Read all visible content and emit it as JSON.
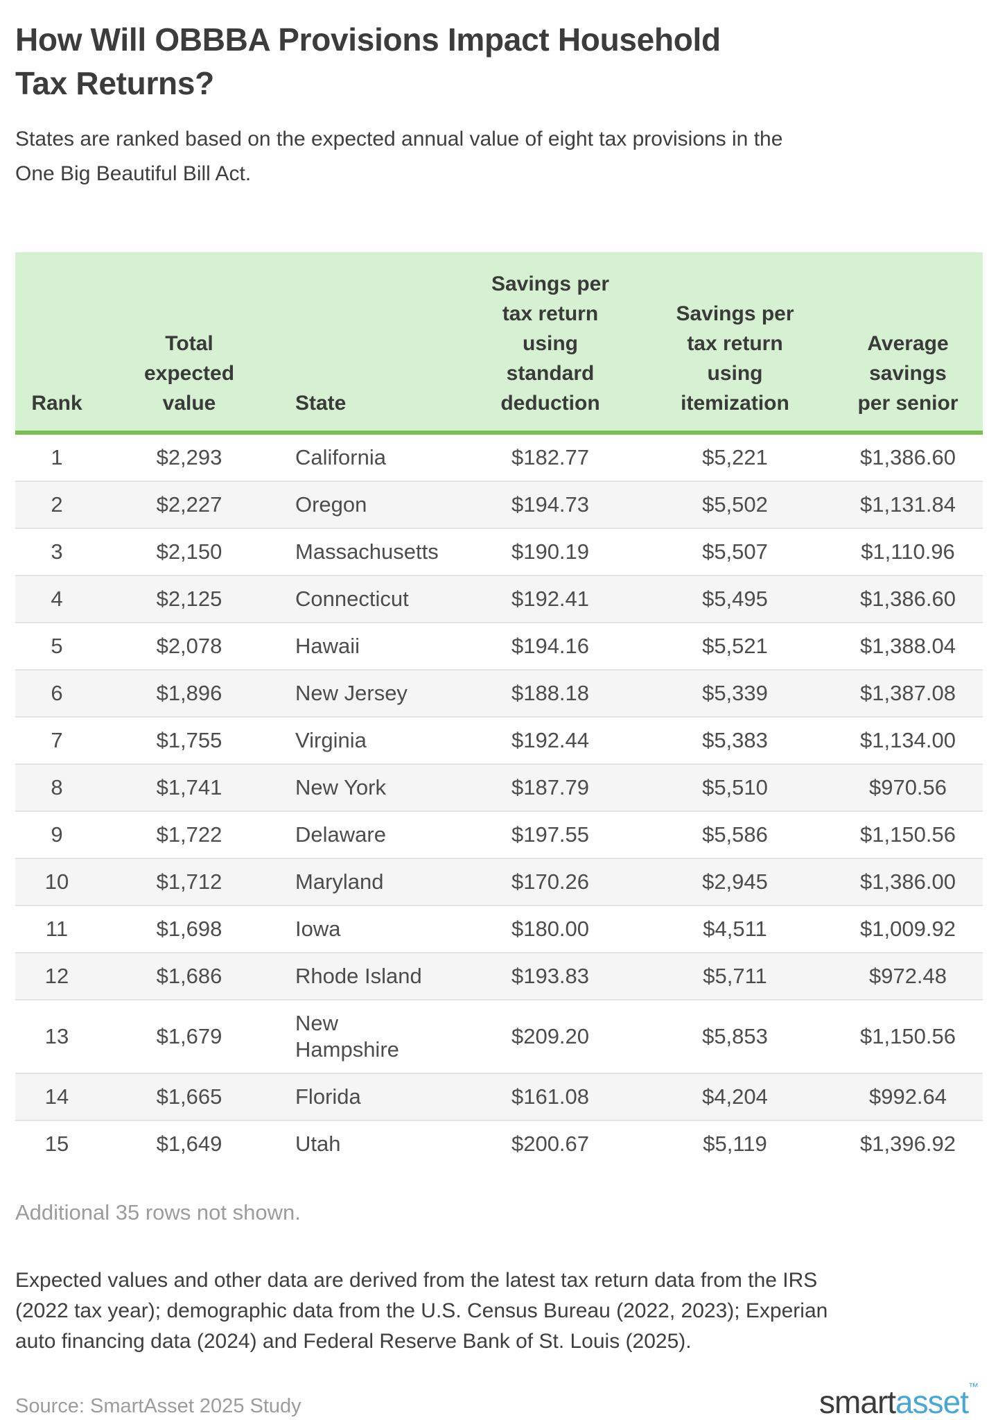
{
  "header": {
    "title": "How Will OBBBA Provisions Impact Household Tax Returns?",
    "subtitle": "States are ranked based on the expected annual value of eight tax provisions in the One Big Beautiful Bill Act."
  },
  "chart_data": {
    "type": "table",
    "title": "How Will OBBBA Provisions Impact Household Tax Returns?",
    "subtitle": "States are ranked based on the expected annual value of eight tax provisions in the One Big Beautiful Bill Act.",
    "columns": [
      {
        "label": "Rank",
        "display": "Rank"
      },
      {
        "label": "Total expected value",
        "display": "Total\nexpected\nvalue"
      },
      {
        "label": "State",
        "display": "State"
      },
      {
        "label": "Savings per tax return using standard deduction",
        "display": "Savings per\ntax return\nusing\nstandard\ndeduction"
      },
      {
        "label": "Savings per tax return using itemization",
        "display": "Savings per\ntax return\nusing\nitemization"
      },
      {
        "label": "Average savings per senior",
        "display": "Average\nsavings\nper senior"
      }
    ],
    "rows": [
      {
        "rank": "1",
        "total_expected_value": "$2,293",
        "state": "California",
        "savings_standard_deduction": "$182.77",
        "savings_itemization": "$5,221",
        "average_savings_per_senior": "$1,386.60"
      },
      {
        "rank": "2",
        "total_expected_value": "$2,227",
        "state": "Oregon",
        "savings_standard_deduction": "$194.73",
        "savings_itemization": "$5,502",
        "average_savings_per_senior": "$1,131.84"
      },
      {
        "rank": "3",
        "total_expected_value": "$2,150",
        "state": "Massachusetts",
        "savings_standard_deduction": "$190.19",
        "savings_itemization": "$5,507",
        "average_savings_per_senior": "$1,110.96"
      },
      {
        "rank": "4",
        "total_expected_value": "$2,125",
        "state": "Connecticut",
        "savings_standard_deduction": "$192.41",
        "savings_itemization": "$5,495",
        "average_savings_per_senior": "$1,386.60"
      },
      {
        "rank": "5",
        "total_expected_value": "$2,078",
        "state": "Hawaii",
        "savings_standard_deduction": "$194.16",
        "savings_itemization": "$5,521",
        "average_savings_per_senior": "$1,388.04"
      },
      {
        "rank": "6",
        "total_expected_value": "$1,896",
        "state": "New Jersey",
        "savings_standard_deduction": "$188.18",
        "savings_itemization": "$5,339",
        "average_savings_per_senior": "$1,387.08"
      },
      {
        "rank": "7",
        "total_expected_value": "$1,755",
        "state": "Virginia",
        "savings_standard_deduction": "$192.44",
        "savings_itemization": "$5,383",
        "average_savings_per_senior": "$1,134.00"
      },
      {
        "rank": "8",
        "total_expected_value": "$1,741",
        "state": "New York",
        "savings_standard_deduction": "$187.79",
        "savings_itemization": "$5,510",
        "average_savings_per_senior": "$970.56"
      },
      {
        "rank": "9",
        "total_expected_value": "$1,722",
        "state": "Delaware",
        "savings_standard_deduction": "$197.55",
        "savings_itemization": "$5,586",
        "average_savings_per_senior": "$1,150.56"
      },
      {
        "rank": "10",
        "total_expected_value": "$1,712",
        "state": "Maryland",
        "savings_standard_deduction": "$170.26",
        "savings_itemization": "$2,945",
        "average_savings_per_senior": "$1,386.00"
      },
      {
        "rank": "11",
        "total_expected_value": "$1,698",
        "state": "Iowa",
        "savings_standard_deduction": "$180.00",
        "savings_itemization": "$4,511",
        "average_savings_per_senior": "$1,009.92"
      },
      {
        "rank": "12",
        "total_expected_value": "$1,686",
        "state": "Rhode Island",
        "savings_standard_deduction": "$193.83",
        "savings_itemization": "$5,711",
        "average_savings_per_senior": "$972.48"
      },
      {
        "rank": "13",
        "total_expected_value": "$1,679",
        "state": "New Hampshire",
        "state_display": "New\nHampshire",
        "savings_standard_deduction": "$209.20",
        "savings_itemization": "$5,853",
        "average_savings_per_senior": "$1,150.56"
      },
      {
        "rank": "14",
        "total_expected_value": "$1,665",
        "state": "Florida",
        "savings_standard_deduction": "$161.08",
        "savings_itemization": "$4,204",
        "average_savings_per_senior": "$992.64"
      },
      {
        "rank": "15",
        "total_expected_value": "$1,649",
        "state": "Utah",
        "savings_standard_deduction": "$200.67",
        "savings_itemization": "$5,119",
        "average_savings_per_senior": "$1,396.92"
      }
    ],
    "layout_hints": {
      "header_bg": "#d6f1d1",
      "header_border": "#7abf53",
      "alt_row_bg": "#f5f5f5"
    }
  },
  "footer": {
    "additional_note": "Additional 35 rows not shown.",
    "methodology": "Expected values and other data are derived from the latest tax return data from the IRS\n(2022 tax year); demographic data from the U.S. Census Bureau (2022, 2023); Experian\nauto financing data (2024) and Federal Reserve Bank of St. Louis (2025).",
    "source": "Source: SmartAsset 2025 Study"
  },
  "branding": {
    "logo_part1": "smart",
    "logo_part2": "asset",
    "logo_tm": "™",
    "logo_color1": "#3b3b3b",
    "logo_color2": "#47a8d8"
  }
}
